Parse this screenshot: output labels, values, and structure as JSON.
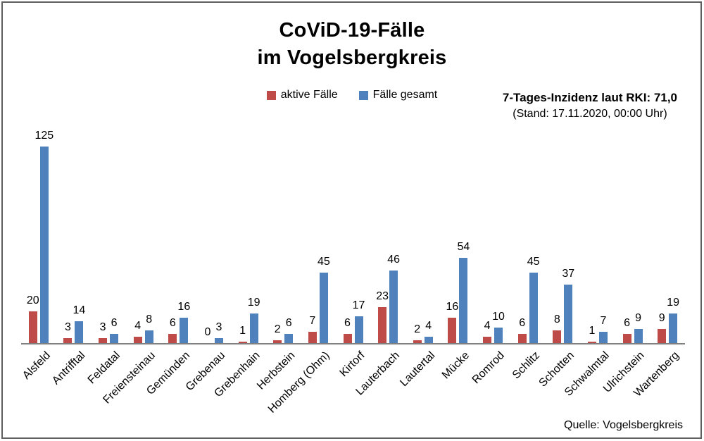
{
  "title": {
    "line1": "CoViD-19-Fälle",
    "line2": "im Vogelsbergkreis"
  },
  "legend": [
    {
      "label": "aktive Fälle",
      "color": "#BE4B48"
    },
    {
      "label": "Fälle gesamt",
      "color": "#4F81BD"
    }
  ],
  "incidence": {
    "line1": "7-Tages-Inzidenz laut RKI: 71,0",
    "line2": "(Stand: 17.11.2020, 00:00 Uhr)"
  },
  "source": "Quelle: Vogelsbergkreis",
  "colors": {
    "active_bar": "#BE4B48",
    "total_bar": "#4F81BD",
    "axis": "#808080",
    "border": "#5f5f5f",
    "background": "#ffffff",
    "text": "#000000"
  },
  "chart_data": {
    "type": "bar",
    "title": "CoViD-19-Fälle im Vogelsbergkreis",
    "categories": [
      "Alsfeld",
      "Antrifftal",
      "Feldatal",
      "Freiensteinau",
      "Gemünden",
      "Grebenau",
      "Grebenhain",
      "Herbstein",
      "Homberg (Ohm)",
      "Kirtorf",
      "Lauterbach",
      "Lautertal",
      "Mücke",
      "Romrod",
      "Schlitz",
      "Schotten",
      "Schwalmtal",
      "Ulrichstein",
      "Wartenberg"
    ],
    "series": [
      {
        "name": "aktive Fälle",
        "color": "#BE4B48",
        "values": [
          20,
          3,
          3,
          4,
          6,
          0,
          1,
          2,
          7,
          6,
          23,
          2,
          16,
          4,
          6,
          8,
          1,
          6,
          9
        ]
      },
      {
        "name": "Fälle gesamt",
        "color": "#4F81BD",
        "values": [
          125,
          14,
          6,
          8,
          16,
          3,
          19,
          6,
          45,
          17,
          46,
          4,
          54,
          10,
          45,
          37,
          7,
          9,
          19
        ]
      }
    ],
    "value_labels": true,
    "xlabel": "",
    "ylabel": "",
    "ylim": [
      0,
      135
    ],
    "grid": false,
    "y_axis_visible": false,
    "legend_position": "top-center",
    "annotations": [
      "7-Tages-Inzidenz laut RKI: 71,0",
      "(Stand: 17.11.2020, 00:00 Uhr)",
      "Quelle: Vogelsbergkreis"
    ]
  }
}
